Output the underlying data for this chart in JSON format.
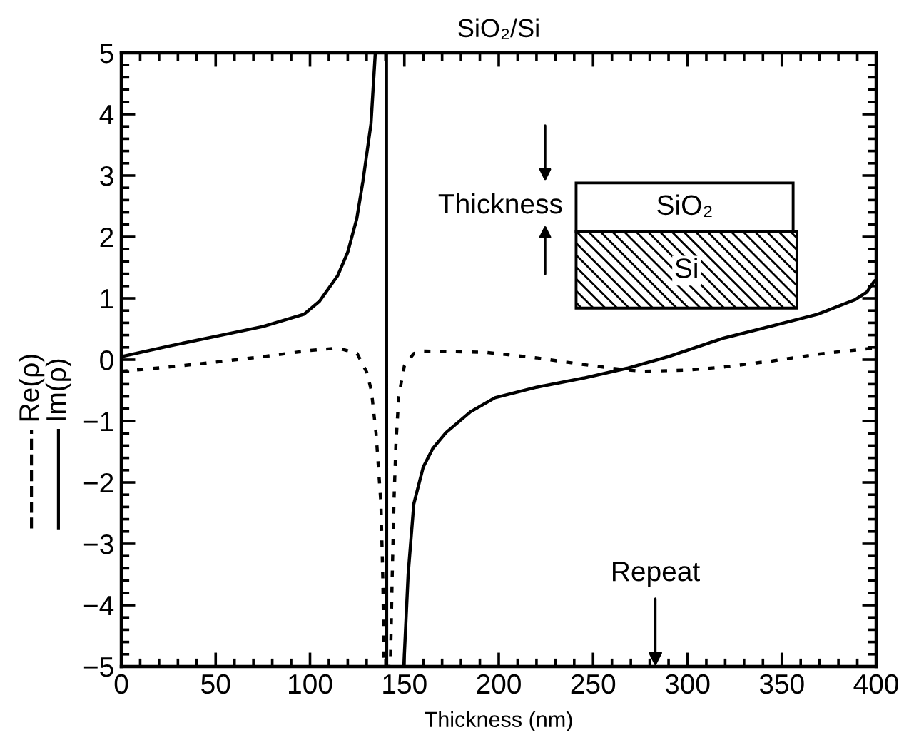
{
  "chart_data": {
    "type": "line",
    "title": "SiO₂/Si",
    "xlabel": "Thickness (nm)",
    "xlim": [
      0,
      400
    ],
    "xticks": [
      0,
      50,
      100,
      150,
      200,
      250,
      300,
      350,
      400
    ],
    "ylim": [
      -5,
      5
    ],
    "yticks": [
      -5,
      -4,
      -3,
      -2,
      -1,
      0,
      1,
      2,
      3,
      4,
      5
    ],
    "grid": false,
    "legend": "left",
    "marker": "none",
    "series": [
      {
        "name": "Re(ρ)",
        "color": "#000000",
        "line_style": "dotted",
        "x": [
          0,
          25,
          50,
          75,
          100,
          115,
          125,
          130,
          132.5,
          135,
          137.6,
          138.6,
          139.3,
          142.6,
          143.5,
          144.5,
          145.5,
          147,
          150,
          155,
          160,
          192.8,
          220,
          242.7,
          260,
          276,
          300,
          319,
          345,
          369,
          399,
          400
        ],
        "values": [
          -0.19,
          -0.12,
          -0.04,
          0.05,
          0.15,
          0.19,
          0.1,
          -0.2,
          -0.5,
          -1.2,
          -2.35,
          -3.6,
          -5,
          -5,
          -3.6,
          -2.3,
          -1.4,
          -0.6,
          -0.1,
          0.1,
          0.14,
          0.12,
          0.03,
          -0.07,
          -0.14,
          -0.19,
          -0.17,
          -0.12,
          -0.02,
          0.09,
          0.19,
          0.19
        ]
      },
      {
        "name": "Im(ρ)",
        "color": "#000000",
        "line_style": "solid",
        "x": [
          0,
          25,
          50,
          75,
          96.8,
          105,
          114.7,
          120,
          124.8,
          128,
          132.3,
          134.6,
          137,
          140.5,
          140.6,
          145,
          149.7,
          152,
          155,
          160,
          165,
          172,
          185,
          198,
          220,
          245,
          268,
          290,
          319,
          345,
          369,
          389,
          395,
          399,
          400
        ],
        "values": [
          0.05,
          0.22,
          0.38,
          0.54,
          0.74,
          0.95,
          1.37,
          1.75,
          2.3,
          2.9,
          3.84,
          5,
          null,
          5,
          -5,
          null,
          -5,
          -3.5,
          -2.35,
          -1.75,
          -1.45,
          -1.19,
          -0.85,
          -0.62,
          -0.45,
          -0.3,
          -0.14,
          0.05,
          0.35,
          0.55,
          0.74,
          0.98,
          1.1,
          1.28,
          1.3
        ]
      }
    ],
    "annotations": [
      "Thickness",
      "SiO₂",
      "Si",
      "Repeat"
    ]
  }
}
